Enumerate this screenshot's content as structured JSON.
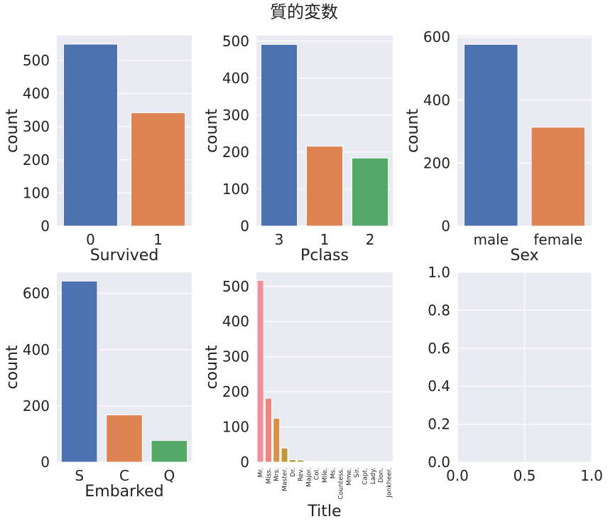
{
  "figure": {
    "suptitle": "質的変数"
  },
  "chart_data": [
    {
      "type": "bar",
      "xlabel": "Survived",
      "ylabel": "count",
      "categories": [
        "0",
        "1"
      ],
      "values": [
        549,
        342
      ],
      "colors": [
        "#4c72b0",
        "#dd8452"
      ],
      "ylim": [
        0,
        575
      ],
      "yticks": [
        "0",
        "100",
        "200",
        "300",
        "400",
        "500"
      ],
      "grid": true
    },
    {
      "type": "bar",
      "xlabel": "Pclass",
      "ylabel": "count",
      "categories": [
        "3",
        "1",
        "2"
      ],
      "values": [
        491,
        216,
        184
      ],
      "colors": [
        "#4c72b0",
        "#dd8452",
        "#55a868"
      ],
      "ylim": [
        0,
        515
      ],
      "yticks": [
        "0",
        "100",
        "200",
        "300",
        "400",
        "500"
      ],
      "grid": true
    },
    {
      "type": "bar",
      "xlabel": "Sex",
      "ylabel": "count",
      "categories": [
        "male",
        "female"
      ],
      "values": [
        577,
        314
      ],
      "colors": [
        "#4c72b0",
        "#dd8452"
      ],
      "ylim": [
        0,
        605
      ],
      "yticks": [
        "0",
        "200",
        "400",
        "600"
      ],
      "grid": true
    },
    {
      "type": "bar",
      "xlabel": "Embarked",
      "ylabel": "count",
      "categories": [
        "S",
        "C",
        "Q"
      ],
      "values": [
        644,
        168,
        77
      ],
      "colors": [
        "#4c72b0",
        "#dd8452",
        "#55a868"
      ],
      "ylim": [
        0,
        675
      ],
      "yticks": [
        "0",
        "200",
        "400",
        "600"
      ],
      "grid": true
    },
    {
      "type": "bar",
      "xlabel": "Title",
      "ylabel": "count",
      "categories": [
        "Mr.",
        "Miss.",
        "Mrs.",
        "Master.",
        "Dr.",
        "Rev.",
        "Major.",
        "Col.",
        "Mlle.",
        "Ms.",
        "Countess.",
        "Mme.",
        "Sir.",
        "Capt.",
        "Lady.",
        "Don.",
        "Jonkheer."
      ],
      "values": [
        517,
        182,
        125,
        40,
        7,
        6,
        2,
        2,
        2,
        1,
        1,
        1,
        1,
        1,
        1,
        1,
        1
      ],
      "colors": [
        "#f28e9c",
        "#e8897c",
        "#d9904a",
        "#c59638",
        "#b19e3a",
        "#a0a43a",
        "#8aaa3a",
        "#5eb04a",
        "#3ab27a",
        "#36ad98",
        "#38a9aa",
        "#3aa6bc",
        "#4aa2d6",
        "#8e98e6",
        "#b98de8",
        "#dc83dc",
        "#ef86b8"
      ],
      "tick_rotation": 90,
      "ylim": [
        0,
        540
      ],
      "yticks": [
        "0",
        "100",
        "200",
        "300",
        "400",
        "500"
      ],
      "grid": true
    },
    {
      "type": "bar",
      "xlabel": "",
      "ylabel": "",
      "categories": [],
      "values": [],
      "xlim": [
        0,
        1
      ],
      "ylim": [
        0,
        1
      ],
      "xticks": [
        "0.0",
        "0.5",
        "1.0"
      ],
      "yticks": [
        "0.0",
        "0.2",
        "0.4",
        "0.6",
        "0.8",
        "1.0"
      ],
      "grid": true
    }
  ]
}
